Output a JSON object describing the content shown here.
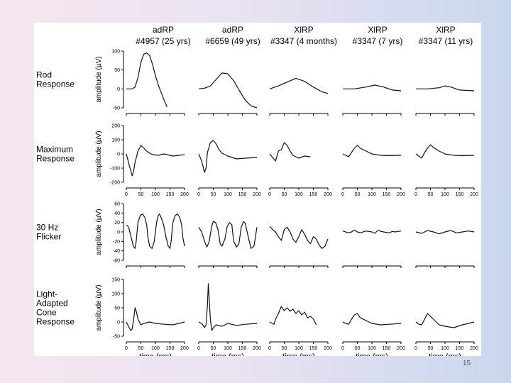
{
  "slide": {
    "page_number": "15"
  },
  "chart_data": {
    "type": "line",
    "title": "",
    "xlabel": "time (ms)",
    "ylabel": "amplitude (µV)",
    "xlim": [
      0,
      200
    ],
    "x_ticks": [
      0,
      50,
      100,
      150,
      200
    ],
    "subjects": [
      {
        "diagnosis": "adRP",
        "id": "#4957 (25 yrs)"
      },
      {
        "diagnosis": "adRP",
        "id": "#6659 (49 yrs)"
      },
      {
        "diagnosis": "XlRP",
        "id": "#3347 (4 months)"
      },
      {
        "diagnosis": "XlRP",
        "id": "#3347 (7 yrs)"
      },
      {
        "diagnosis": "XlRP",
        "id": "#3347 (11 yrs)"
      }
    ],
    "responses": [
      {
        "label": "Rod Response",
        "label_lines": [
          "Rod",
          "Response"
        ],
        "ylim": [
          -50,
          100
        ],
        "y_ticks": [
          -50,
          0,
          50,
          100
        ],
        "series": [
          {
            "x": [
              0,
              20,
              30,
              40,
              50,
              60,
              70,
              80,
              90,
              100,
              110,
              120,
              130,
              140
            ],
            "y": [
              0,
              0,
              5,
              30,
              70,
              92,
              95,
              88,
              65,
              35,
              10,
              -10,
              -30,
              -48
            ]
          },
          {
            "x": [
              0,
              20,
              40,
              60,
              80,
              100,
              120,
              140,
              160,
              180,
              200
            ],
            "y": [
              0,
              2,
              8,
              25,
              42,
              40,
              22,
              -5,
              -30,
              -45,
              -50
            ]
          },
          {
            "x": [
              0,
              30,
              60,
              90,
              120,
              150,
              180,
              200
            ],
            "y": [
              0,
              8,
              18,
              28,
              20,
              5,
              -8,
              -12
            ]
          },
          {
            "x": [
              0,
              40,
              80,
              110,
              140,
              170,
              200
            ],
            "y": [
              0,
              0,
              5,
              10,
              5,
              -3,
              -5
            ]
          },
          {
            "x": [
              0,
              40,
              80,
              100,
              120,
              150,
              200
            ],
            "y": [
              0,
              0,
              3,
              8,
              5,
              -3,
              -5
            ]
          }
        ]
      },
      {
        "label": "Maximum Response",
        "label_lines": [
          "Maximum",
          "Response"
        ],
        "ylim": [
          -200,
          200
        ],
        "y_ticks": [
          -200,
          -100,
          0,
          100,
          200
        ],
        "series": [
          {
            "x": [
              0,
              10,
              20,
              25,
              30,
              40,
              50,
              60,
              70,
              80,
              90,
              110,
              130,
              160,
              200
            ],
            "y": [
              0,
              -80,
              -155,
              -120,
              -60,
              20,
              60,
              40,
              20,
              5,
              -5,
              -10,
              0,
              -15,
              -5
            ]
          },
          {
            "x": [
              0,
              10,
              20,
              25,
              30,
              40,
              50,
              60,
              70,
              80,
              100,
              130,
              160,
              200
            ],
            "y": [
              0,
              -50,
              -130,
              -100,
              10,
              80,
              95,
              70,
              30,
              5,
              -15,
              -35,
              -30,
              -25
            ]
          },
          {
            "x": [
              0,
              10,
              20,
              30,
              40,
              50,
              60,
              70,
              80,
              100,
              120,
              140
            ],
            "y": [
              0,
              -25,
              -50,
              20,
              30,
              80,
              60,
              20,
              -10,
              -30,
              -15,
              -20
            ]
          },
          {
            "x": [
              0,
              10,
              20,
              30,
              40,
              50,
              60,
              80,
              100,
              130,
              160,
              200
            ],
            "y": [
              0,
              -10,
              -20,
              10,
              40,
              60,
              40,
              20,
              0,
              -10,
              -12,
              -10
            ]
          },
          {
            "x": [
              0,
              10,
              20,
              30,
              40,
              50,
              60,
              80,
              100,
              130,
              160,
              200
            ],
            "y": [
              0,
              -15,
              -30,
              10,
              40,
              65,
              45,
              20,
              0,
              -10,
              -12,
              -10
            ]
          }
        ]
      },
      {
        "label": "30 Hz Flicker",
        "label_lines": [
          "30 Hz",
          "Flicker"
        ],
        "ylim": [
          -60,
          60
        ],
        "y_ticks": [
          -60,
          -40,
          -20,
          0,
          20,
          40,
          60
        ],
        "series": [
          {
            "x": [
              0,
              8,
              16,
              24,
              30,
              34,
              40,
              48,
              56,
              64,
              70,
              74,
              80,
              88,
              96,
              104,
              110,
              114,
              120,
              128,
              136,
              144,
              150,
              154,
              160,
              168,
              176,
              184,
              190,
              194,
              200
            ],
            "y": [
              15,
              10,
              -10,
              -30,
              -35,
              -20,
              20,
              35,
              38,
              30,
              15,
              -10,
              -30,
              -35,
              -20,
              20,
              35,
              38,
              30,
              15,
              -10,
              -30,
              -35,
              -20,
              20,
              35,
              38,
              30,
              15,
              -10,
              -30
            ]
          },
          {
            "x": [
              0,
              10,
              20,
              28,
              36,
              44,
              50,
              58,
              66,
              74,
              80,
              90,
              98,
              106,
              114,
              120,
              130,
              138,
              146,
              154,
              160,
              170,
              180,
              190,
              200
            ],
            "y": [
              10,
              0,
              -20,
              -32,
              -20,
              10,
              22,
              20,
              5,
              -25,
              -30,
              -15,
              12,
              20,
              15,
              -20,
              -32,
              -25,
              10,
              22,
              18,
              -10,
              -35,
              -30,
              10
            ]
          },
          {
            "x": [
              0,
              10,
              20,
              30,
              40,
              50,
              60,
              70,
              80,
              90,
              100,
              110,
              120,
              130,
              140,
              150,
              160,
              170,
              180,
              190,
              200
            ],
            "y": [
              12,
              5,
              0,
              -10,
              -18,
              5,
              10,
              0,
              -15,
              -22,
              -10,
              5,
              -5,
              -18,
              -25,
              -10,
              -15,
              -28,
              -35,
              -30,
              -15
            ]
          },
          {
            "x": [
              0,
              20,
              30,
              40,
              50,
              60,
              80,
              100,
              110,
              120,
              140,
              160,
              170,
              180,
              200
            ],
            "y": [
              2,
              -2,
              0,
              4,
              0,
              -2,
              2,
              0,
              -3,
              3,
              0,
              -2,
              1,
              0,
              2
            ]
          },
          {
            "x": [
              0,
              20,
              30,
              40,
              60,
              80,
              100,
              120,
              140,
              160,
              180,
              200
            ],
            "y": [
              0,
              -3,
              0,
              3,
              0,
              -4,
              0,
              3,
              -2,
              0,
              2,
              0
            ]
          }
        ]
      },
      {
        "label": "Light-Adapted Cone Response",
        "label_lines": [
          "Light-",
          "Adapted",
          "Cone",
          "Response"
        ],
        "ylim": [
          -50,
          150
        ],
        "y_ticks": [
          -50,
          0,
          50,
          100,
          150
        ],
        "series": [
          {
            "x": [
              0,
              10,
              15,
              20,
              25,
              30,
              35,
              40,
              50,
              60,
              80,
              100,
              130,
              160,
              200
            ],
            "y": [
              0,
              -20,
              -30,
              -25,
              10,
              50,
              35,
              10,
              -10,
              -5,
              0,
              -5,
              -8,
              -10,
              0
            ]
          },
          {
            "x": [
              0,
              10,
              20,
              25,
              30,
              33,
              36,
              40,
              45,
              50,
              60,
              80,
              100,
              130,
              160,
              200
            ],
            "y": [
              0,
              -5,
              -20,
              -10,
              60,
              135,
              80,
              10,
              -30,
              -20,
              -10,
              -15,
              -5,
              -12,
              -8,
              -5
            ]
          },
          {
            "x": [
              0,
              10,
              15,
              20,
              30,
              40,
              50,
              60,
              70,
              80,
              90,
              100,
              110,
              120,
              130,
              140,
              150,
              160
            ],
            "y": [
              0,
              -5,
              -8,
              10,
              30,
              55,
              40,
              50,
              38,
              45,
              30,
              40,
              25,
              35,
              15,
              20,
              10,
              -10
            ]
          },
          {
            "x": [
              0,
              10,
              20,
              30,
              40,
              50,
              60,
              80,
              100,
              130,
              160,
              200
            ],
            "y": [
              0,
              -5,
              -8,
              10,
              25,
              30,
              15,
              5,
              -5,
              -10,
              -8,
              -5
            ]
          },
          {
            "x": [
              0,
              10,
              20,
              30,
              40,
              50,
              60,
              80,
              100,
              130,
              160,
              200
            ],
            "y": [
              0,
              -8,
              -10,
              10,
              30,
              20,
              10,
              -10,
              -15,
              -20,
              -10,
              0
            ]
          }
        ]
      }
    ]
  }
}
